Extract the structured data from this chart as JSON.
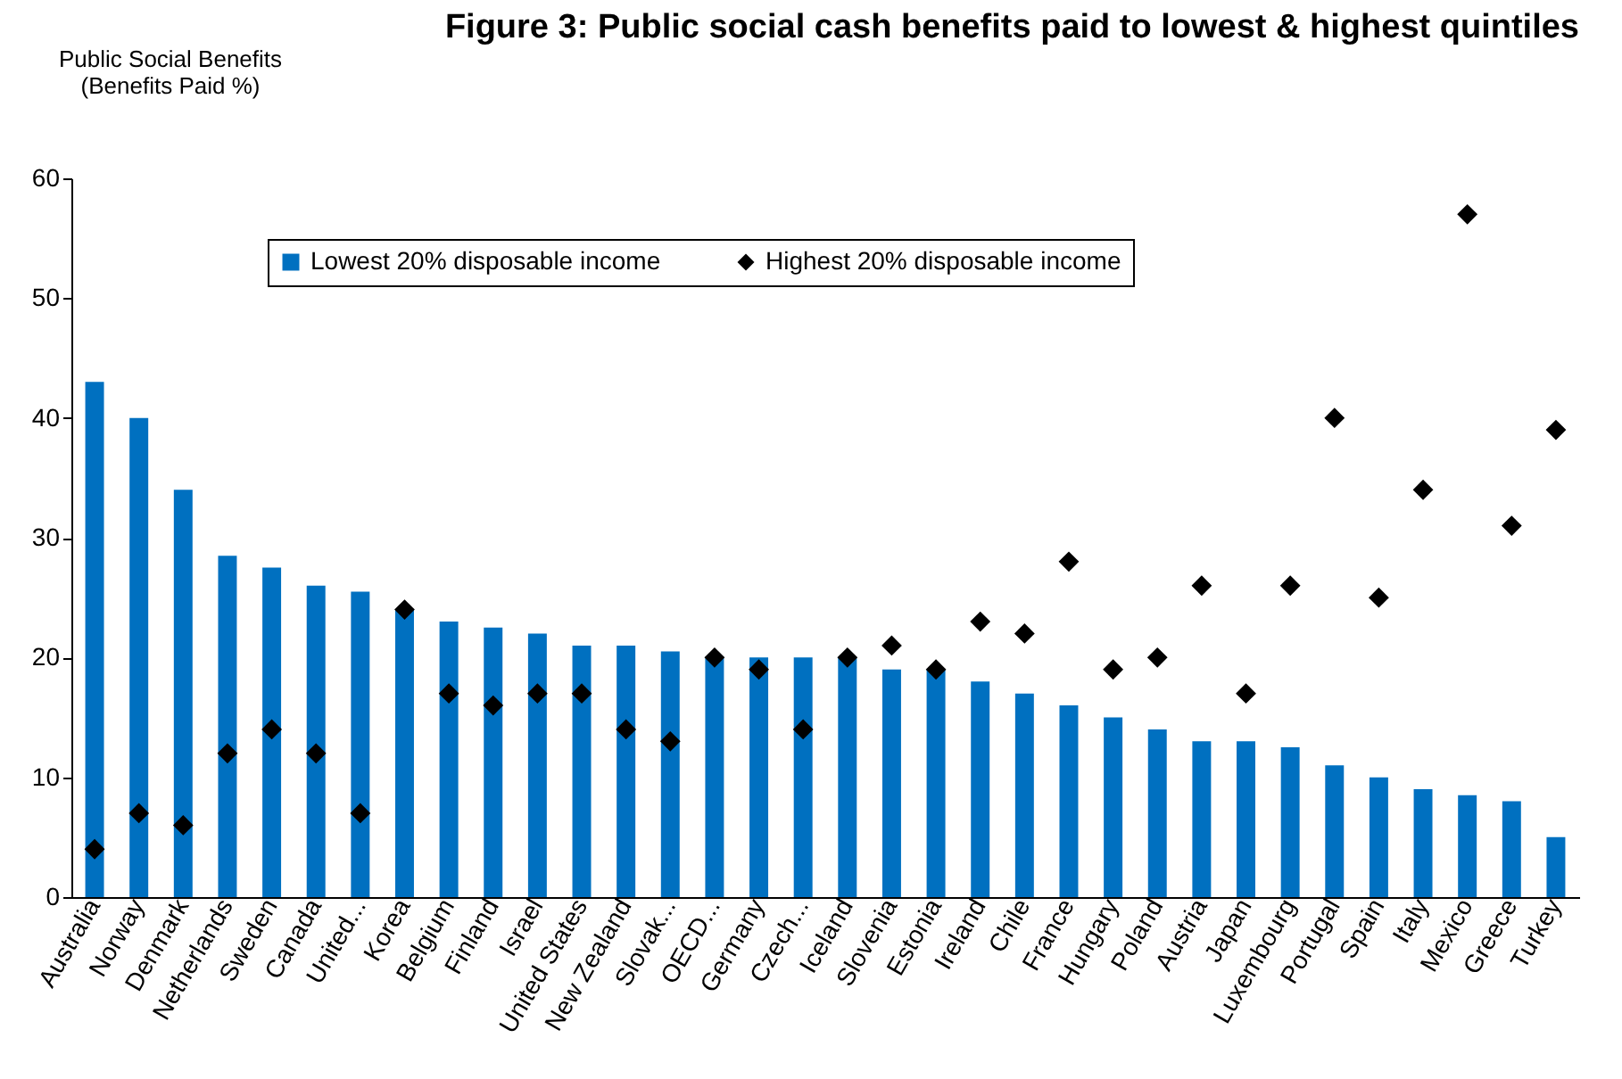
{
  "chart_data": {
    "type": "bar",
    "title": "Figure 3:    Public social cash benefits paid to lowest & highest quintiles",
    "ylabel": "Public Social Benefits\n(Benefits Paid %)",
    "categories": [
      "Australia",
      "Norway",
      "Denmark",
      "Netherlands",
      "Sweden",
      "Canada",
      "United...",
      "Korea",
      "Belgium",
      "Finland",
      "Israel",
      "United States",
      "New Zealand",
      "Slovak...",
      "OECD...",
      "Germany",
      "Czech...",
      "Iceland",
      "Slovenia",
      "Estonia",
      "Ireland",
      "Chile",
      "France",
      "Hungary",
      "Poland",
      "Austria",
      "Japan",
      "Luxembourg",
      "Portugal",
      "Spain",
      "Italy",
      "Mexico",
      "Greece",
      "Turkey"
    ],
    "series": [
      {
        "name": "Lowest 20% disposable income",
        "color": "#0070c0",
        "values": [
          43,
          40,
          34,
          28.5,
          27.5,
          26,
          25.5,
          24,
          23,
          22.5,
          22,
          21,
          21,
          20.5,
          20,
          20,
          20,
          20,
          19,
          19,
          18,
          17,
          16,
          15,
          14,
          13,
          13,
          12.5,
          11,
          10,
          9,
          8.5,
          8,
          5
        ]
      },
      {
        "name": "Highest 20% disposable income",
        "type": "scatter",
        "color": "#000000",
        "marker": "diamond",
        "values": [
          4,
          7,
          6,
          12,
          14,
          12,
          7,
          24,
          17,
          16,
          17,
          17,
          14,
          13,
          20,
          19,
          14,
          20,
          21,
          19,
          23,
          22,
          28,
          19,
          20,
          26,
          17,
          26,
          40,
          25,
          34,
          57,
          31,
          39
        ]
      }
    ],
    "ylim": [
      0,
      60
    ],
    "yticks": [
      0,
      10,
      20,
      30,
      40,
      50,
      60
    ],
    "grid": false,
    "legend": "top"
  }
}
